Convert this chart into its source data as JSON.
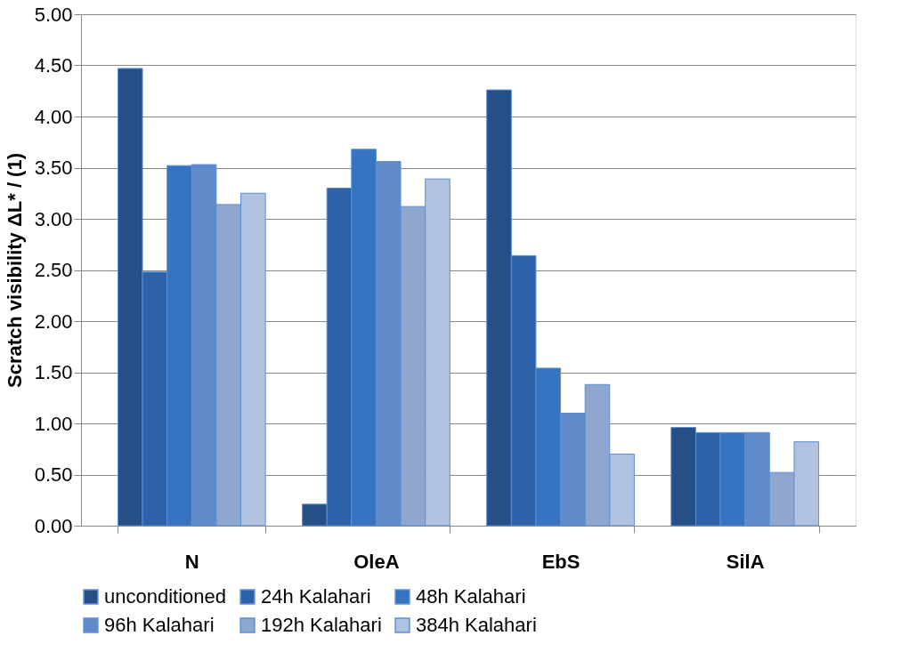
{
  "chart_data": {
    "type": "bar",
    "ylabel": "Scratch visibility ΔL* / (1)",
    "categories": [
      "N",
      "OleA",
      "EbS",
      "SilA"
    ],
    "series": [
      {
        "name": "unconditioned",
        "color": "#254f86",
        "values": [
          4.47,
          0.21,
          4.26,
          0.96
        ]
      },
      {
        "name": "24h Kalahari",
        "color": "#2e62a8",
        "values": [
          2.48,
          3.3,
          2.64,
          0.91
        ]
      },
      {
        "name": "48h Kalahari",
        "color": "#3673c0",
        "values": [
          3.52,
          3.68,
          1.54,
          0.91
        ]
      },
      {
        "name": "96h Kalahari",
        "color": "#5f8bca",
        "values": [
          3.53,
          3.56,
          1.1,
          0.91
        ]
      },
      {
        "name": "192h Kalahari",
        "color": "#8fa6cf",
        "values": [
          3.14,
          3.12,
          1.38,
          0.52
        ]
      },
      {
        "name": "384h Kalahari",
        "color": "#b0c2df",
        "values": [
          3.25,
          3.39,
          0.7,
          0.82
        ]
      }
    ],
    "ylim": [
      0,
      5
    ],
    "yticks": [
      {
        "value": 0,
        "label": "0.00"
      },
      {
        "value": 0.5,
        "label": "0.50"
      },
      {
        "value": 1,
        "label": "1.00"
      },
      {
        "value": 1.5,
        "label": "1.50"
      },
      {
        "value": 2,
        "label": "2.00"
      },
      {
        "value": 2.5,
        "label": "2.50"
      },
      {
        "value": 3,
        "label": "3.00"
      },
      {
        "value": 3.5,
        "label": "3.50"
      },
      {
        "value": 4,
        "label": "4.00"
      },
      {
        "value": 4.5,
        "label": "4.50"
      },
      {
        "value": 5,
        "label": "5.00"
      }
    ],
    "grid": "y",
    "legend": "bottom"
  }
}
